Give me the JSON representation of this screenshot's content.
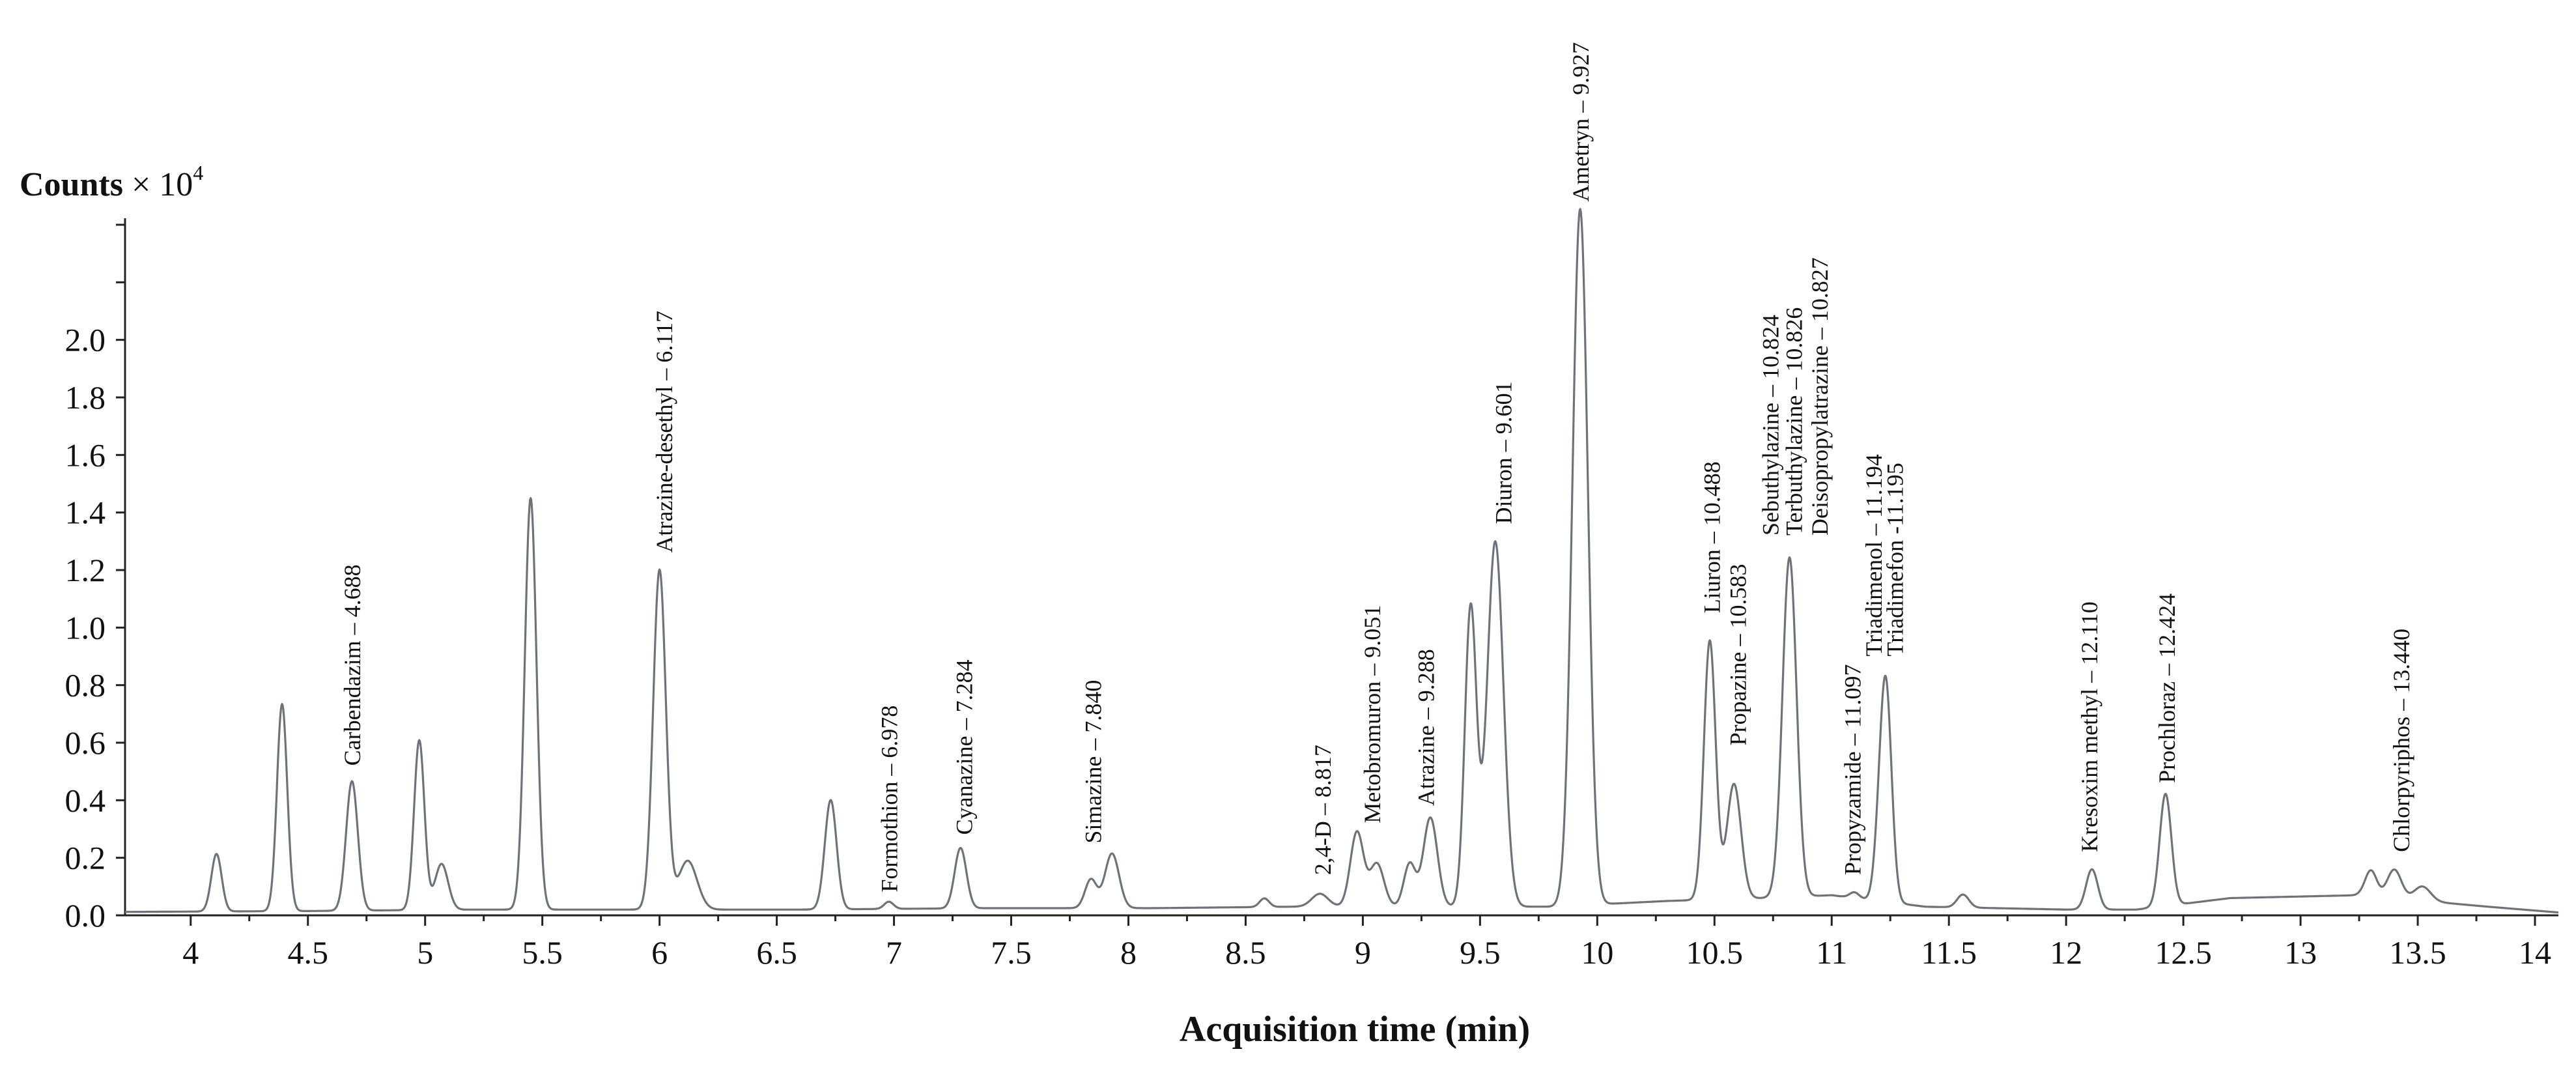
{
  "chart_data": {
    "type": "line",
    "title": "",
    "xlabel": "Acquisition time (min)",
    "ylabel": {
      "bold": "Counts",
      "rest": " × 10",
      "exponent": "4"
    },
    "xlim": [
      3.72,
      14.1
    ],
    "ylim": [
      0,
      2.4
    ],
    "x_ticks": [
      "4",
      "4.5",
      "5",
      "5.5",
      "6",
      "6.5",
      "7",
      "7.5",
      "8",
      "8.5",
      "9",
      "9.5",
      "10",
      "10.5",
      "11",
      "11.5",
      "12",
      "12.5",
      "13",
      "13.5",
      "14"
    ],
    "y_ticks": [
      "0.0",
      "0.2",
      "0.4",
      "0.6",
      "0.8",
      "1.0",
      "1.2",
      "1.4",
      "1.6",
      "1.8",
      "2.0"
    ],
    "grid": false,
    "line_color": "#6e737a",
    "baseline": [
      [
        3.72,
        0.012
      ],
      [
        4.5,
        0.015
      ],
      [
        5.2,
        0.02
      ],
      [
        6.3,
        0.02
      ],
      [
        6.6,
        0.02
      ],
      [
        7.4,
        0.025
      ],
      [
        8.1,
        0.025
      ],
      [
        8.7,
        0.03
      ],
      [
        9.3,
        0.03
      ],
      [
        9.8,
        0.03
      ],
      [
        10.3,
        0.05
      ],
      [
        10.7,
        0.06
      ],
      [
        11.0,
        0.07
      ],
      [
        11.4,
        0.03
      ],
      [
        12.0,
        0.02
      ],
      [
        12.3,
        0.02
      ],
      [
        12.6,
        0.05
      ],
      [
        12.7,
        0.06
      ],
      [
        13.25,
        0.07
      ],
      [
        13.8,
        0.03
      ],
      [
        14.1,
        0.01
      ]
    ],
    "series": [
      {
        "name": "Chromatogram",
        "peaks": [
          {
            "rt": 4.11,
            "height": 0.2,
            "width": 0.022
          },
          {
            "rt": 4.39,
            "height": 0.72,
            "width": 0.022
          },
          {
            "rt": 4.688,
            "height": 0.45,
            "width": 0.025
          },
          {
            "rt": 4.975,
            "height": 0.59,
            "width": 0.022
          },
          {
            "rt": 5.07,
            "height": 0.16,
            "width": 0.028
          },
          {
            "rt": 5.45,
            "height": 1.43,
            "width": 0.025
          },
          {
            "rt": 6.0,
            "height": 1.18,
            "width": 0.027
          },
          {
            "rt": 6.12,
            "height": 0.17,
            "width": 0.04
          },
          {
            "rt": 6.73,
            "height": 0.38,
            "width": 0.025
          },
          {
            "rt": 6.978,
            "height": 0.025,
            "width": 0.02
          },
          {
            "rt": 7.284,
            "height": 0.21,
            "width": 0.025
          },
          {
            "rt": 7.84,
            "height": 0.1,
            "width": 0.025
          },
          {
            "rt": 7.93,
            "height": 0.19,
            "width": 0.03
          },
          {
            "rt": 8.58,
            "height": 0.03,
            "width": 0.02
          },
          {
            "rt": 8.817,
            "height": 0.045,
            "width": 0.035
          },
          {
            "rt": 8.975,
            "height": 0.26,
            "width": 0.028
          },
          {
            "rt": 9.06,
            "height": 0.15,
            "width": 0.03
          },
          {
            "rt": 9.2,
            "height": 0.15,
            "width": 0.025
          },
          {
            "rt": 9.288,
            "height": 0.31,
            "width": 0.03
          },
          {
            "rt": 9.46,
            "height": 1.04,
            "width": 0.025
          },
          {
            "rt": 9.565,
            "height": 1.27,
            "width": 0.035
          },
          {
            "rt": 9.927,
            "height": 2.42,
            "width": 0.033
          },
          {
            "rt": 10.48,
            "height": 0.9,
            "width": 0.025
          },
          {
            "rt": 10.583,
            "height": 0.4,
            "width": 0.03
          },
          {
            "rt": 10.82,
            "height": 1.18,
            "width": 0.03
          },
          {
            "rt": 11.097,
            "height": 0.02,
            "width": 0.02
          },
          {
            "rt": 11.195,
            "height": 0.07,
            "width": 0.02
          },
          {
            "rt": 11.23,
            "height": 0.77,
            "width": 0.025
          },
          {
            "rt": 11.56,
            "height": 0.045,
            "width": 0.025
          },
          {
            "rt": 12.11,
            "height": 0.14,
            "width": 0.025
          },
          {
            "rt": 12.424,
            "height": 0.39,
            "width": 0.025
          },
          {
            "rt": 13.3,
            "height": 0.09,
            "width": 0.025
          },
          {
            "rt": 13.4,
            "height": 0.1,
            "width": 0.03
          },
          {
            "rt": 13.52,
            "height": 0.05,
            "width": 0.035
          }
        ]
      }
    ],
    "annotations": [
      {
        "text": "Carbendazim – 4.688",
        "x": 4.69,
        "y": 0.52
      },
      {
        "text": "Atrazine-desethyl – 6.117",
        "x": 6.02,
        "y": 1.26
      },
      {
        "text": "Formothion – 6.978",
        "x": 6.98,
        "y": 0.08
      },
      {
        "text": "Cyanazine – 7.284",
        "x": 7.3,
        "y": 0.28
      },
      {
        "text": "Simazine – 7.840",
        "x": 7.85,
        "y": 0.25
      },
      {
        "text": "2,4-D – 8.817",
        "x": 8.83,
        "y": 0.14
      },
      {
        "text": "Metobromuron – 9.051",
        "x": 9.04,
        "y": 0.32
      },
      {
        "text": "Atrazine – 9.288",
        "x": 9.27,
        "y": 0.38
      },
      {
        "text": "Diuron – 9.601",
        "x": 9.6,
        "y": 1.36
      },
      {
        "text": "Ametryn – 9.927",
        "x": 9.93,
        "y": 2.48
      },
      {
        "text": "Liuron – 10.488",
        "x": 10.49,
        "y": 1.05
      },
      {
        "text": "Propazine – 10.583",
        "x": 10.6,
        "y": 0.59
      },
      {
        "text": "Sebuthylazine – 10.824",
        "x": 10.74,
        "y": 1.32
      },
      {
        "text": "Terbuthylazine – 10.826",
        "x": 10.84,
        "y": 1.32
      },
      {
        "text": "Deisopropylatrazine – 10.827",
        "x": 10.95,
        "y": 1.32
      },
      {
        "text": "Propyzamide – 11.097",
        "x": 11.09,
        "y": 0.14
      },
      {
        "text": "Triadimenol – 11.194",
        "x": 11.18,
        "y": 0.9
      },
      {
        "text": "Triadimefon -11.195",
        "x": 11.27,
        "y": 0.9
      },
      {
        "text": "Kresoxim methyl – 12.110",
        "x": 12.1,
        "y": 0.22
      },
      {
        "text": "Prochloraz – 12.424",
        "x": 12.43,
        "y": 0.46
      },
      {
        "text": "Chlorpyriphos – 13.440",
        "x": 13.43,
        "y": 0.22
      }
    ]
  }
}
